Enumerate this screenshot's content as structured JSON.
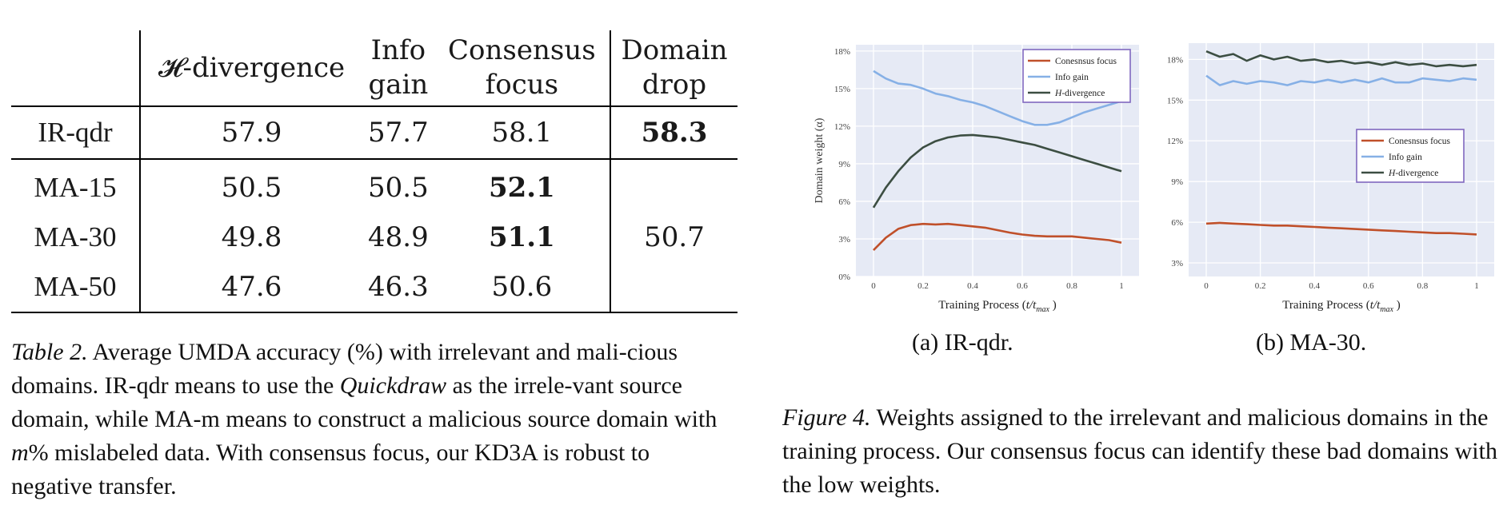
{
  "table": {
    "header": {
      "h_divergence": "𝓗-divergence",
      "info_gain_1": "Info",
      "info_gain_2": "gain",
      "consensus_1": "Consensus",
      "consensus_2": "focus",
      "domain_drop_1": "Domain",
      "domain_drop_2": "drop"
    },
    "rows": [
      {
        "label": "IR-qdr",
        "h": "57.9",
        "info": "57.7",
        "cons": "58.1",
        "drop": "58.3"
      },
      {
        "label": "MA-15",
        "h": "50.5",
        "info": "50.5",
        "cons": "52.1"
      },
      {
        "label": "MA-30",
        "h": "49.8",
        "info": "48.9",
        "cons": "51.1"
      },
      {
        "label": "MA-50",
        "h": "47.6",
        "info": "46.3",
        "cons": "50.6"
      }
    ],
    "ma_drop": "50.7"
  },
  "table_caption": {
    "label": "Table 2.",
    "p1": " Average UMDA accuracy (%) with irrelevant and mali-cious domains. IR-qdr means to use the ",
    "italic": "Quickdraw",
    "p2": " as the irrele-vant source domain, while MA-m means to construct a malicious source domain with ",
    "m": "m",
    "p3": "% mislabeled data. With consensus focus, our KD3A is robust to negative transfer."
  },
  "figure_caption": {
    "label": "Figure 4.",
    "text": " Weights assigned to the irrelevant and malicious domains in the training process. Our consensus focus can identify these bad domains with the low weights."
  },
  "subcaptions": {
    "a": "(a) IR-qdr.",
    "b": "(b) MA-30."
  },
  "colors": {
    "consensus": "#c0502a",
    "info": "#86b0e6",
    "hdiv": "#3c4e42",
    "plot_bg": "#e6eaf5",
    "legend_border": "#8068c0"
  },
  "chart_data": [
    {
      "type": "line",
      "ylabel": "Domain weight (α)",
      "xlabel": "Training Process (t/tmax )",
      "x_ticks": [
        "0",
        "0.2",
        "0.4",
        "0.6",
        "0.8",
        "1"
      ],
      "y_ticks": [
        "0%",
        "3%",
        "6%",
        "9%",
        "12%",
        "15%",
        "18%"
      ],
      "xlim": [
        0,
        1
      ],
      "ylim": [
        0,
        18.5
      ],
      "legend_position": "top-right",
      "x": [
        0,
        0.05,
        0.1,
        0.15,
        0.2,
        0.25,
        0.3,
        0.35,
        0.4,
        0.45,
        0.5,
        0.55,
        0.6,
        0.65,
        0.7,
        0.75,
        0.8,
        0.85,
        0.9,
        0.95,
        1
      ],
      "series": [
        {
          "name": "Conesnsus focus",
          "values": [
            2.1,
            3.1,
            3.8,
            4.1,
            4.2,
            4.15,
            4.2,
            4.1,
            4.0,
            3.9,
            3.7,
            3.5,
            3.35,
            3.25,
            3.2,
            3.2,
            3.2,
            3.1,
            3.0,
            2.9,
            2.7
          ]
        },
        {
          "name": "Info gain",
          "values": [
            16.4,
            15.8,
            15.4,
            15.3,
            15.0,
            14.6,
            14.4,
            14.1,
            13.9,
            13.6,
            13.2,
            12.8,
            12.4,
            12.1,
            12.1,
            12.3,
            12.7,
            13.1,
            13.4,
            13.7,
            14.0
          ]
        },
        {
          "name": "H-divergence",
          "values": [
            5.5,
            7.1,
            8.4,
            9.5,
            10.3,
            10.8,
            11.1,
            11.25,
            11.3,
            11.2,
            11.1,
            10.9,
            10.7,
            10.5,
            10.2,
            9.9,
            9.6,
            9.3,
            9.0,
            8.7,
            8.4
          ]
        }
      ]
    },
    {
      "type": "line",
      "xlabel": "Training Process (t/tmax )",
      "x_ticks": [
        "0",
        "0.2",
        "0.4",
        "0.6",
        "0.8",
        "1"
      ],
      "y_ticks": [
        "3%",
        "6%",
        "9%",
        "12%",
        "15%",
        "18%"
      ],
      "xlim": [
        0,
        1
      ],
      "ylim": [
        2,
        19.2
      ],
      "legend_position": "center-right",
      "x": [
        0,
        0.05,
        0.1,
        0.15,
        0.2,
        0.25,
        0.3,
        0.35,
        0.4,
        0.45,
        0.5,
        0.55,
        0.6,
        0.65,
        0.7,
        0.75,
        0.8,
        0.85,
        0.9,
        0.95,
        1
      ],
      "series": [
        {
          "name": "Conesnsus focus",
          "values": [
            5.9,
            5.95,
            5.9,
            5.85,
            5.8,
            5.75,
            5.75,
            5.7,
            5.65,
            5.6,
            5.55,
            5.5,
            5.45,
            5.4,
            5.35,
            5.3,
            5.25,
            5.2,
            5.2,
            5.15,
            5.1
          ]
        },
        {
          "name": "Info gain",
          "values": [
            16.8,
            16.1,
            16.4,
            16.2,
            16.4,
            16.3,
            16.1,
            16.4,
            16.3,
            16.5,
            16.3,
            16.5,
            16.3,
            16.6,
            16.3,
            16.3,
            16.6,
            16.5,
            16.4,
            16.6,
            16.5
          ]
        },
        {
          "name": "H-divergence",
          "values": [
            18.6,
            18.2,
            18.4,
            17.9,
            18.3,
            18.0,
            18.2,
            17.9,
            18.0,
            17.8,
            17.9,
            17.7,
            17.8,
            17.6,
            17.8,
            17.6,
            17.7,
            17.5,
            17.6,
            17.5,
            17.6
          ]
        }
      ]
    }
  ]
}
